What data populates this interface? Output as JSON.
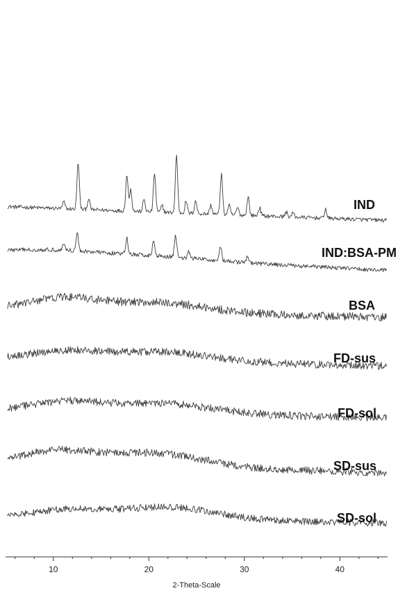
{
  "chart_data": {
    "type": "line",
    "title": "",
    "xlabel": "2-Theta-Scale",
    "ylabel": "",
    "xlim": [
      5,
      45
    ],
    "xticks": [
      10,
      20,
      30,
      40
    ],
    "grid": false,
    "legend": "none",
    "series": [
      {
        "name": "IND",
        "baseline": 0.25,
        "slope": -0.05,
        "noise": 0.28,
        "humps": [],
        "peaks": [
          [
            11.1,
            1.0
          ],
          [
            12.6,
            6.8
          ],
          [
            13.7,
            1.6
          ],
          [
            17.7,
            5.2
          ],
          [
            18.1,
            3.2
          ],
          [
            19.5,
            1.8
          ],
          [
            20.6,
            5.6
          ],
          [
            21.4,
            1.0
          ],
          [
            22.9,
            8.3
          ],
          [
            23.9,
            1.8
          ],
          [
            24.9,
            1.9
          ],
          [
            26.5,
            1.3
          ],
          [
            27.6,
            5.9
          ],
          [
            28.4,
            1.4
          ],
          [
            29.3,
            1.1
          ],
          [
            30.4,
            2.7
          ],
          [
            31.6,
            1.2
          ],
          [
            34.4,
            0.7
          ],
          [
            35.1,
            0.6
          ],
          [
            38.5,
            1.3
          ]
        ]
      },
      {
        "name": "IND:BSA-PM",
        "baseline": 0.35,
        "slope": -0.07,
        "noise": 0.3,
        "humps": [
          [
            11.0,
            4.0,
            0.5
          ],
          [
            21.0,
            5.0,
            0.4
          ]
        ],
        "peaks": [
          [
            11.1,
            1.0
          ],
          [
            12.5,
            2.6
          ],
          [
            17.7,
            2.3
          ],
          [
            20.5,
            2.2
          ],
          [
            22.8,
            3.2
          ],
          [
            24.2,
            0.9
          ],
          [
            27.5,
            2.2
          ],
          [
            30.3,
            0.8
          ]
        ]
      },
      {
        "name": "BSA",
        "baseline": 0.0,
        "slope": -0.03,
        "noise": 0.6,
        "humps": [
          [
            11.0,
            3.5,
            1.7
          ],
          [
            21.0,
            5.0,
            1.4
          ]
        ],
        "peaks": []
      },
      {
        "name": "FD-sus",
        "baseline": 0.0,
        "slope": -0.03,
        "noise": 0.55,
        "humps": [
          [
            11.5,
            3.5,
            1.1
          ],
          [
            21.5,
            5.0,
            1.3
          ]
        ],
        "peaks": []
      },
      {
        "name": "FD-sol",
        "baseline": 0.0,
        "slope": -0.03,
        "noise": 0.55,
        "humps": [
          [
            11.5,
            3.5,
            1.3
          ],
          [
            21.5,
            5.0,
            1.4
          ]
        ],
        "peaks": []
      },
      {
        "name": "SD-sus",
        "baseline": 0.0,
        "slope": -0.04,
        "noise": 0.55,
        "humps": [
          [
            10.5,
            3.5,
            1.7
          ],
          [
            20.5,
            5.0,
            1.9
          ]
        ],
        "peaks": []
      },
      {
        "name": "SD-sol",
        "baseline": 0.0,
        "slope": -0.02,
        "noise": 0.5,
        "humps": [
          [
            11.5,
            3.5,
            1.2
          ],
          [
            22.0,
            5.0,
            1.8
          ]
        ],
        "peaks": []
      }
    ]
  }
}
